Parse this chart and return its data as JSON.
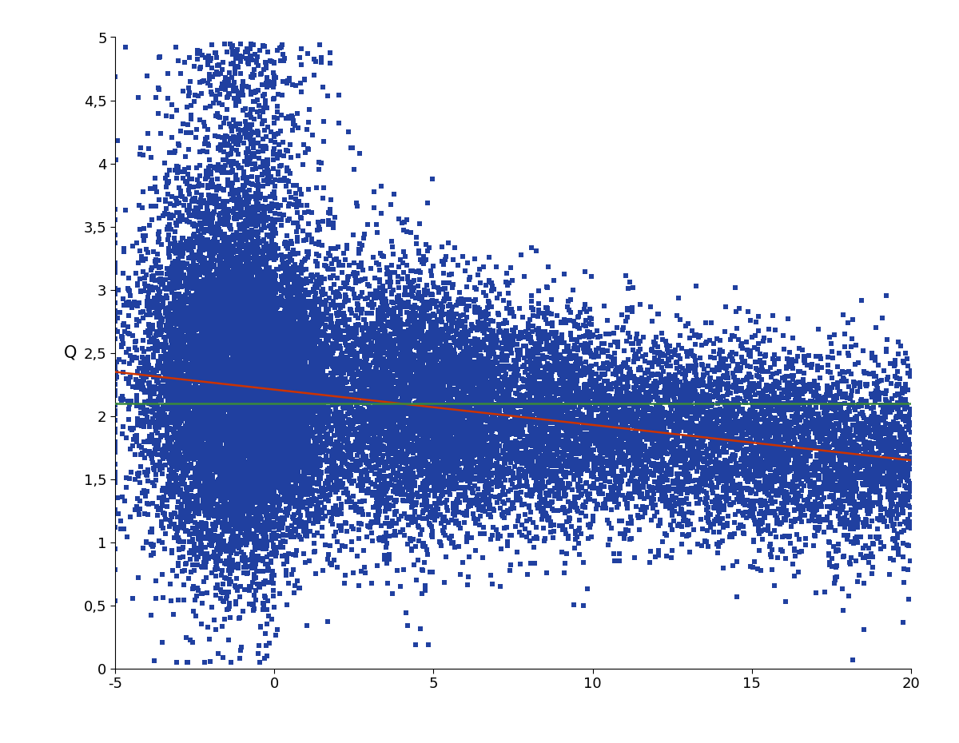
{
  "xlim": [
    -5,
    20
  ],
  "ylim": [
    0,
    5
  ],
  "xticks": [
    -5,
    0,
    5,
    10,
    15,
    20
  ],
  "yticks": [
    0,
    0.5,
    1,
    1.5,
    2,
    2.5,
    3,
    3.5,
    4,
    4.5,
    5
  ],
  "ylabel": "Q",
  "scatter_color": "#2040a0",
  "marker": "s",
  "marker_size": 5,
  "green_line_y": 2.1,
  "green_line_color": "#3a8a3a",
  "red_line_color": "#cc3300",
  "red_line_x0": -5,
  "red_line_y0": 2.35,
  "red_line_x1": 20,
  "red_line_y1": 1.65,
  "background_color": "#ffffff",
  "n_points": 25000,
  "seed": 42,
  "figsize": [
    12.0,
    9.3
  ],
  "dpi": 100
}
